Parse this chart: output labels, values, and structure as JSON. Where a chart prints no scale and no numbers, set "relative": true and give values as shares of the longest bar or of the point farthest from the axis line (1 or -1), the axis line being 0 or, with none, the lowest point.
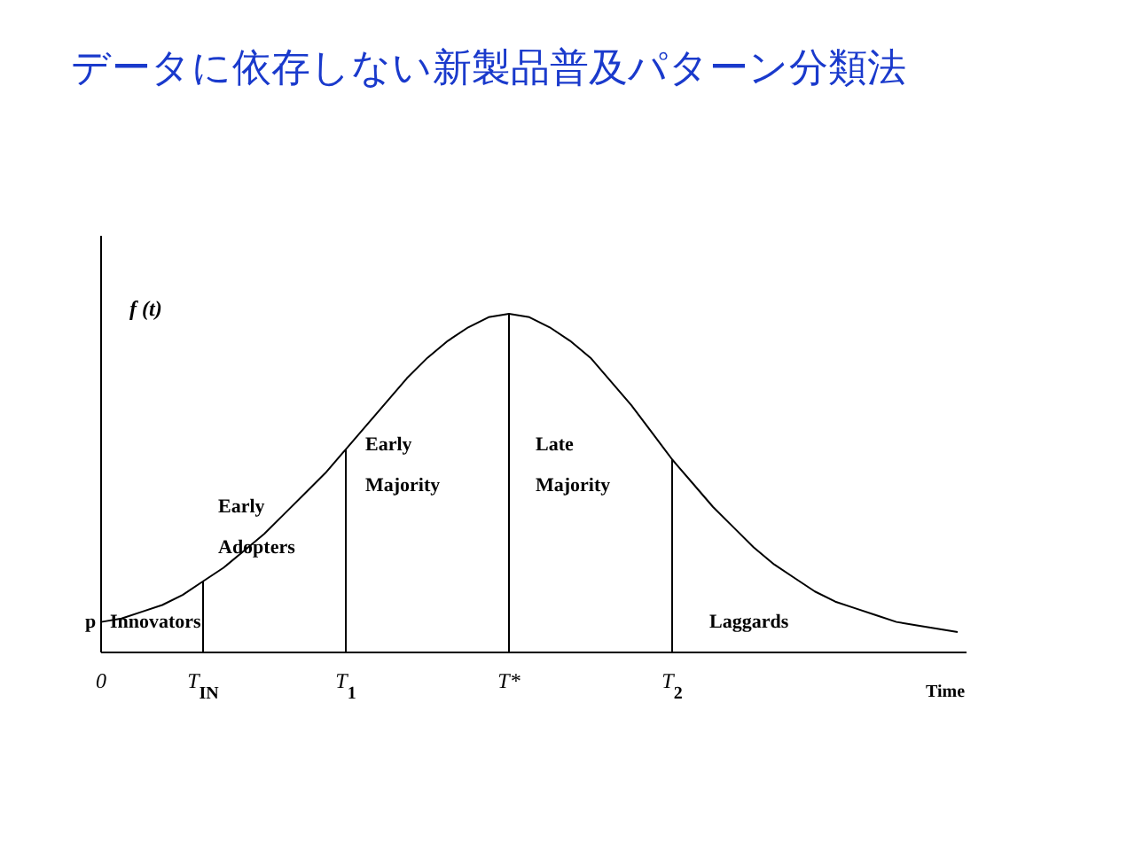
{
  "chart_data": {
    "type": "line",
    "title": "データに依存しない新製品普及パターン分類法",
    "xlabel": "Time",
    "ylabel": "f (t)",
    "relative": true,
    "categories": [
      "0",
      null,
      null,
      null,
      null,
      "T$_{IN}$",
      null,
      null,
      null,
      null,
      null,
      null,
      "T$_{1}$",
      null,
      null,
      null,
      null,
      null,
      null,
      null,
      "T*",
      null,
      null,
      null,
      null,
      null,
      null,
      null,
      "T$_{2}$",
      null,
      null,
      null,
      null,
      null,
      null,
      null,
      null,
      null,
      null,
      null,
      null,
      null,
      null
    ],
    "series": [
      {
        "color": "#000000",
        "values": [
          0.09,
          0.1,
          0.12,
          0.14,
          0.17,
          0.21,
          0.25,
          0.3,
          0.35,
          0.41,
          0.47,
          0.53,
          0.6,
          0.67,
          0.74,
          0.81,
          0.87,
          0.92,
          0.96,
          0.99,
          1.0,
          0.99,
          0.96,
          0.92,
          0.87,
          0.8,
          0.73,
          0.65,
          0.57,
          0.5,
          0.43,
          0.37,
          0.31,
          0.26,
          0.22,
          0.18,
          0.15,
          0.13,
          0.11,
          0.09,
          0.08,
          0.07,
          0.06
        ]
      }
    ],
    "ref_lines": [
      {
        "axis": "x",
        "value": "T$_{IN}$"
      },
      {
        "axis": "x",
        "value": "T$_{1}$"
      },
      {
        "axis": "x",
        "value": "T*"
      },
      {
        "axis": "x",
        "value": "T$_{2}$"
      }
    ],
    "annotations": [
      "p",
      "Innovators",
      "Early Adopters",
      "Early Majority",
      "Late Majority",
      "Laggards"
    ]
  }
}
